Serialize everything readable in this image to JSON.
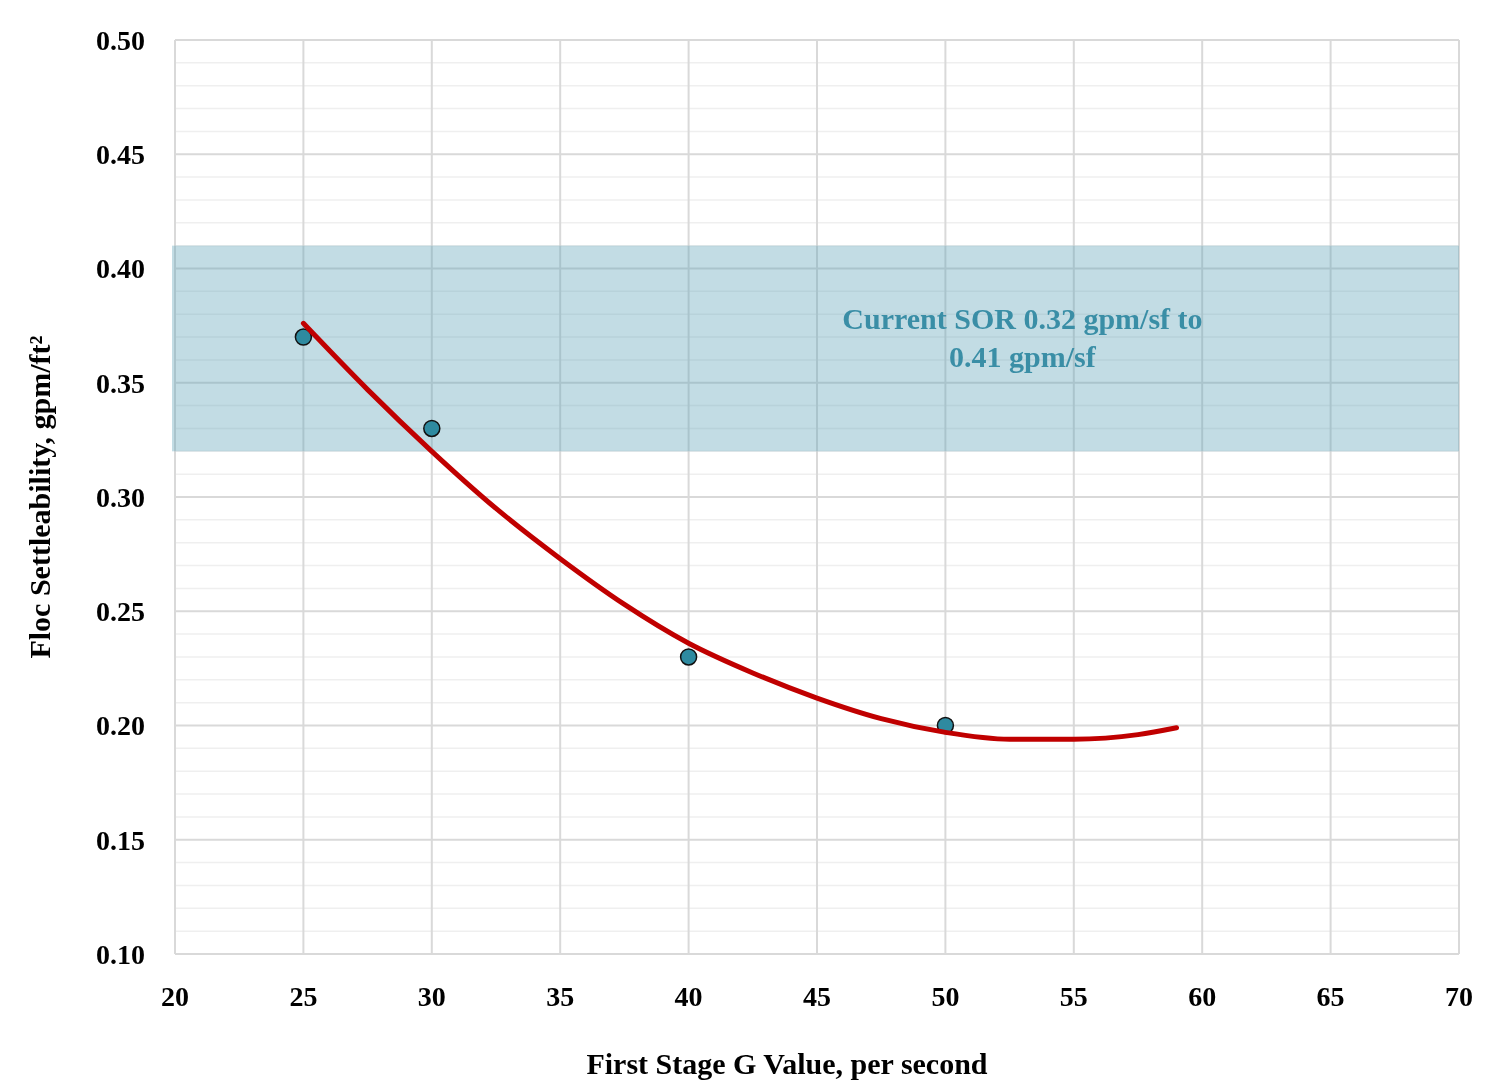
{
  "chart_data": {
    "type": "scatter",
    "xlabel": "First Stage G Value, per second",
    "ylabel": "Floc Settleability, gpm/ft²",
    "xlim": [
      20,
      70
    ],
    "xticks": [
      20,
      25,
      30,
      35,
      40,
      45,
      50,
      55,
      60,
      65,
      70
    ],
    "ylim": [
      0.1,
      0.5
    ],
    "yticks": [
      {
        "value": 0.1,
        "label": "0.10"
      },
      {
        "value": 0.11,
        "label": null
      },
      {
        "value": 0.12,
        "label": null
      },
      {
        "value": 0.13,
        "label": null
      },
      {
        "value": 0.14,
        "label": null
      },
      {
        "value": 0.15,
        "label": "0.15"
      },
      {
        "value": 0.16,
        "label": null
      },
      {
        "value": 0.17,
        "label": null
      },
      {
        "value": 0.18,
        "label": null
      },
      {
        "value": 0.19,
        "label": null
      },
      {
        "value": 0.2,
        "label": "0.20"
      },
      {
        "value": 0.21,
        "label": null
      },
      {
        "value": 0.22,
        "label": null
      },
      {
        "value": 0.23,
        "label": null
      },
      {
        "value": 0.24,
        "label": null
      },
      {
        "value": 0.25,
        "label": "0.25"
      },
      {
        "value": 0.26,
        "label": null
      },
      {
        "value": 0.27,
        "label": null
      },
      {
        "value": 0.28,
        "label": null
      },
      {
        "value": 0.29,
        "label": null
      },
      {
        "value": 0.3,
        "label": "0.30"
      },
      {
        "value": 0.31,
        "label": null
      },
      {
        "value": 0.32,
        "label": null
      },
      {
        "value": 0.33,
        "label": null
      },
      {
        "value": 0.34,
        "label": null
      },
      {
        "value": 0.35,
        "label": "0.35"
      },
      {
        "value": 0.36,
        "label": null
      },
      {
        "value": 0.37,
        "label": null
      },
      {
        "value": 0.38,
        "label": null
      },
      {
        "value": 0.39,
        "label": null
      },
      {
        "value": 0.4,
        "label": "0.40"
      },
      {
        "value": 0.41,
        "label": null
      },
      {
        "value": 0.42,
        "label": null
      },
      {
        "value": 0.43,
        "label": null
      },
      {
        "value": 0.44,
        "label": null
      },
      {
        "value": 0.45,
        "label": "0.45"
      },
      {
        "value": 0.46,
        "label": null
      },
      {
        "value": 0.47,
        "label": null
      },
      {
        "value": 0.48,
        "label": null
      },
      {
        "value": 0.49,
        "label": null
      },
      {
        "value": 0.5,
        "label": "0.50"
      }
    ],
    "grid": true,
    "marker": "circle",
    "series": [
      {
        "color": "#2e8aa0",
        "x": [
          25,
          30,
          40,
          50
        ],
        "values": [
          0.37,
          0.33,
          0.23,
          0.2
        ]
      },
      {
        "type": "line",
        "color": "#c00000",
        "marker": "none",
        "line_style": "solid",
        "x": [
          25,
          27.5,
          30,
          32.5,
          35,
          37.5,
          40,
          42.5,
          45,
          47.5,
          50,
          52.5,
          55,
          57.5,
          59
        ],
        "values": [
          0.376,
          0.347,
          0.32,
          0.295,
          0.273,
          0.253,
          0.236,
          0.223,
          0.212,
          0.203,
          0.197,
          0.194,
          0.194,
          0.196,
          0.199
        ]
      }
    ],
    "bands": [
      {
        "axis": "y",
        "from": 0.32,
        "to": 0.41,
        "label": "Current SOR 0.32 gpm/sf to 0.41 gpm/sf",
        "color": "#5fa3b7"
      }
    ]
  }
}
